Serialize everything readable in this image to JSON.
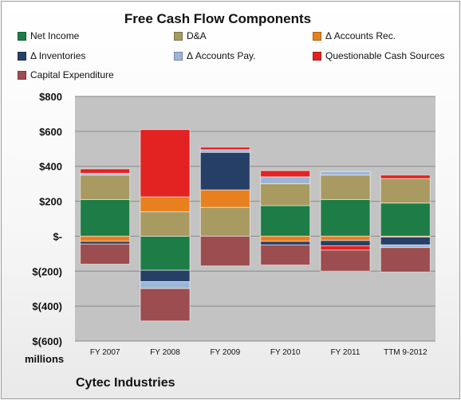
{
  "chart_data": {
    "type": "bar",
    "stacked": true,
    "title": "Free Cash Flow Components",
    "footer": "Cytec Industries",
    "unit_label": "millions",
    "categories": [
      "FY 2007",
      "FY 2008",
      "FY 2009",
      "FY 2010",
      "FY 2011",
      "TTM 9-2012"
    ],
    "ylim": [
      -600,
      800
    ],
    "yticks": [
      {
        "value": 800,
        "label": "$800"
      },
      {
        "value": 600,
        "label": "$600"
      },
      {
        "value": 400,
        "label": "$400"
      },
      {
        "value": 200,
        "label": "$200"
      },
      {
        "value": 0,
        "label": "$-"
      },
      {
        "value": -200,
        "label": "$(200)"
      },
      {
        "value": -400,
        "label": "$(400)"
      },
      {
        "value": -600,
        "label": "$(600)"
      }
    ],
    "grid": true,
    "series": [
      {
        "name": "Net Income",
        "color": "#1e7d46",
        "values": [
          210,
          -195,
          0,
          175,
          210,
          190
        ]
      },
      {
        "name": "D&A",
        "color": "#a89a60",
        "values": [
          140,
          140,
          165,
          125,
          140,
          140
        ]
      },
      {
        "name": "Δ Accounts Rec.",
        "color": "#e8801f",
        "values": [
          -30,
          85,
          100,
          -30,
          -25,
          -5
        ]
      },
      {
        "name": "Δ Inventories",
        "color": "#263f66",
        "values": [
          -15,
          -65,
          215,
          -20,
          -30,
          -45
        ]
      },
      {
        "name": "Δ Accounts Pay.",
        "color": "#9db6d8",
        "values": [
          10,
          -40,
          15,
          40,
          20,
          -15
        ]
      },
      {
        "name": "Questionable Cash Sources",
        "color": "#e32222",
        "values": [
          25,
          385,
          15,
          35,
          -25,
          20
        ]
      },
      {
        "name": "Capital Expenditure",
        "color": "#9c4d4f",
        "values": [
          -115,
          -185,
          -170,
          -115,
          -120,
          -140
        ]
      }
    ]
  }
}
